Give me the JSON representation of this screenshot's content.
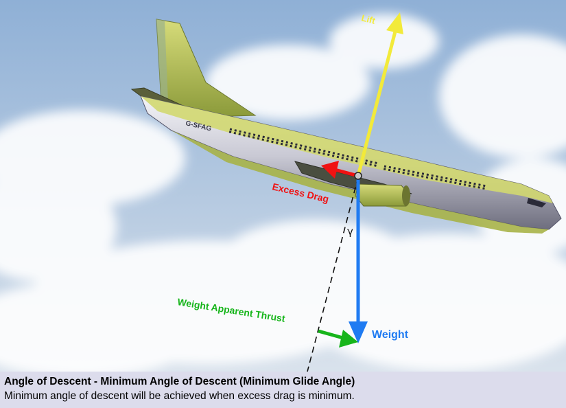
{
  "diagram": {
    "aircraft_registration": "G-SFAG",
    "vectors": {
      "lift": {
        "label": "Lift",
        "color": "#f2ea3a"
      },
      "weight": {
        "label": "Weight",
        "color": "#1f7bf2"
      },
      "excess_drag": {
        "label": "Excess Drag",
        "color": "#f01212"
      },
      "weight_apparent_thrust": {
        "label": "Weight Apparent Thrust",
        "color": "#17b51b"
      }
    },
    "angle_symbol": "γ"
  },
  "caption": {
    "title": "Angle of Descent - Minimum Angle of Descent (Minimum Glide Angle)",
    "text": "Minimum angle of descent will be achieved when excess drag is minimum."
  }
}
